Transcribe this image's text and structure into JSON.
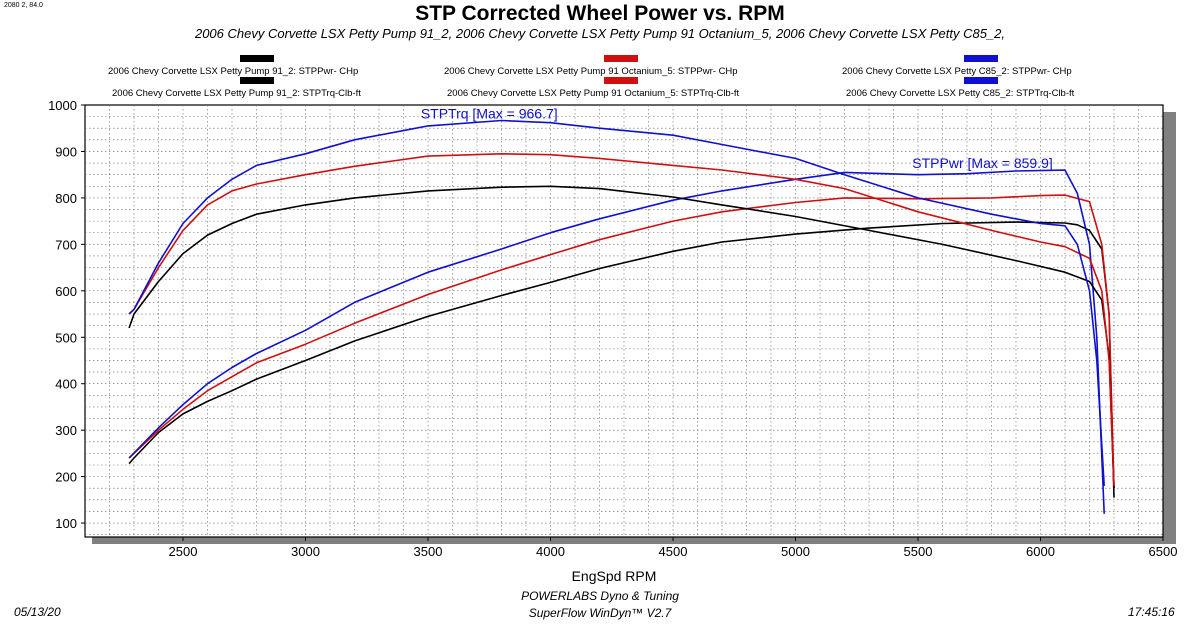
{
  "corner_label": "2080 2, 84.0",
  "title": "STP Corrected Wheel Power vs. RPM",
  "subtitle": "2006 Chevy Corvette LSX Petty Pump 91_2, 2006 Chevy Corvette LSX Petty Pump 91 Octanium_5, 2006 Chevy Corvette LSX Petty C85_2,",
  "legend": [
    {
      "label": "2006 Chevy Corvette LSX Petty Pump 91_2: STPPwr- CHp",
      "color": "#000000"
    },
    {
      "label": "2006 Chevy Corvette LSX Petty Pump 91 Octanium_5: STPPwr- CHp",
      "color": "#d01010"
    },
    {
      "label": "2006 Chevy Corvette LSX Petty C85_2: STPPwr- CHp",
      "color": "#1010d0"
    },
    {
      "label": "2006 Chevy Corvette LSX Petty Pump 91_2: STPTrq-Clb-ft",
      "color": "#000000"
    },
    {
      "label": "2006 Chevy Corvette LSX Petty Pump 91 Octanium_5: STPTrq-Clb-ft",
      "color": "#d01010"
    },
    {
      "label": "2006 Chevy Corvette LSX Petty C85_2: STPTrq-Clb-ft",
      "color": "#1010d0"
    }
  ],
  "footer": {
    "date": "05/13/20",
    "time": "17:45:16",
    "line1": "POWERLABS Dyno & Tuning",
    "line2": "SuperFlow WinDyn™ V2.7"
  },
  "chart_data": {
    "type": "line",
    "title": "STP Corrected Wheel Power vs. RPM",
    "xlabel": "EngSpd  RPM",
    "ylabel": "",
    "xlim": [
      2100,
      6500
    ],
    "ylim": [
      70,
      1000
    ],
    "xticks": [
      2500,
      3000,
      3500,
      4000,
      4500,
      5000,
      5500,
      6000,
      6500
    ],
    "yticks": [
      100,
      200,
      300,
      400,
      500,
      600,
      700,
      800,
      900,
      1000
    ],
    "grid": true,
    "annotations": [
      {
        "text": "STPTrq [Max = 966.7]",
        "x": 3750,
        "y": 966.7
      },
      {
        "text": "STPPwr [Max = 859.9]",
        "x": 6050,
        "y": 859.9
      }
    ],
    "series": [
      {
        "name": "2006 Chevy Corvette LSX Petty Pump 91_2: STPPwr- CHp",
        "color": "#000000",
        "x": [
          2280,
          2300,
          2400,
          2500,
          2600,
          2700,
          2800,
          3000,
          3200,
          3500,
          3800,
          4000,
          4200,
          4500,
          4700,
          5000,
          5300,
          5600,
          5900,
          6100,
          6150,
          6200,
          6250,
          6280,
          6300
        ],
        "y": [
          228,
          240,
          295,
          335,
          362,
          385,
          410,
          450,
          492,
          545,
          590,
          618,
          648,
          685,
          705,
          722,
          735,
          745,
          748,
          746,
          742,
          730,
          690,
          550,
          155
        ]
      },
      {
        "name": "2006 Chevy Corvette LSX Petty Pump 91 Octanium_5: STPPwr- CHp",
        "color": "#d01010",
        "x": [
          2280,
          2400,
          2500,
          2600,
          2700,
          2800,
          3000,
          3200,
          3500,
          3800,
          4000,
          4200,
          4500,
          4700,
          5000,
          5200,
          5500,
          5800,
          6000,
          6100,
          6200,
          6250,
          6280,
          6300
        ],
        "y": [
          240,
          300,
          345,
          385,
          415,
          445,
          485,
          530,
          592,
          645,
          678,
          710,
          750,
          770,
          790,
          800,
          798,
          800,
          805,
          806,
          792,
          700,
          550,
          175
        ]
      },
      {
        "name": "2006 Chevy Corvette LSX Petty C85_2: STPPwr- CHp",
        "color": "#1010d0",
        "x": [
          2280,
          2400,
          2500,
          2600,
          2700,
          2800,
          3000,
          3200,
          3500,
          3800,
          4000,
          4200,
          4500,
          4700,
          5000,
          5200,
          5500,
          5700,
          5900,
          6100,
          6150,
          6200,
          6230,
          6260
        ],
        "y": [
          240,
          305,
          355,
          400,
          435,
          465,
          515,
          575,
          640,
          690,
          725,
          755,
          795,
          815,
          840,
          855,
          850,
          852,
          858,
          859.9,
          810,
          700,
          500,
          120
        ]
      },
      {
        "name": "2006 Chevy Corvette LSX Petty Pump 91_2: STPTrq-Clb-ft",
        "color": "#000000",
        "x": [
          2280,
          2300,
          2400,
          2500,
          2600,
          2700,
          2800,
          3000,
          3200,
          3500,
          3800,
          4000,
          4200,
          4500,
          4700,
          5000,
          5300,
          5600,
          5900,
          6100,
          6150,
          6200,
          6250,
          6280,
          6300
        ],
        "y": [
          520,
          550,
          620,
          680,
          720,
          745,
          765,
          785,
          800,
          815,
          823,
          825,
          820,
          802,
          785,
          760,
          730,
          700,
          665,
          640,
          630,
          620,
          580,
          460,
          175
        ]
      },
      {
        "name": "2006 Chevy Corvette LSX Petty Pump 91 Octanium_5: STPTrq-Clb-ft",
        "color": "#d01010",
        "x": [
          2280,
          2300,
          2400,
          2500,
          2600,
          2700,
          2800,
          3000,
          3200,
          3500,
          3800,
          4000,
          4200,
          4500,
          4700,
          5000,
          5200,
          5500,
          5800,
          6000,
          6100,
          6200,
          6250,
          6280,
          6300
        ],
        "y": [
          550,
          560,
          650,
          730,
          785,
          815,
          830,
          850,
          868,
          890,
          895,
          893,
          885,
          870,
          860,
          840,
          820,
          770,
          730,
          705,
          695,
          670,
          600,
          450,
          180
        ]
      },
      {
        "name": "2006 Chevy Corvette LSX Petty C85_2: STPTrq-Clb-ft",
        "color": "#1010d0",
        "x": [
          2280,
          2300,
          2400,
          2500,
          2600,
          2700,
          2800,
          3000,
          3200,
          3500,
          3800,
          4000,
          4200,
          4500,
          4700,
          5000,
          5200,
          5500,
          5800,
          6000,
          6100,
          6150,
          6200,
          6230,
          6260
        ],
        "y": [
          550,
          560,
          660,
          745,
          800,
          840,
          870,
          895,
          925,
          955,
          966.7,
          962,
          950,
          935,
          915,
          885,
          850,
          800,
          765,
          745,
          740,
          700,
          600,
          450,
          180
        ]
      }
    ]
  }
}
